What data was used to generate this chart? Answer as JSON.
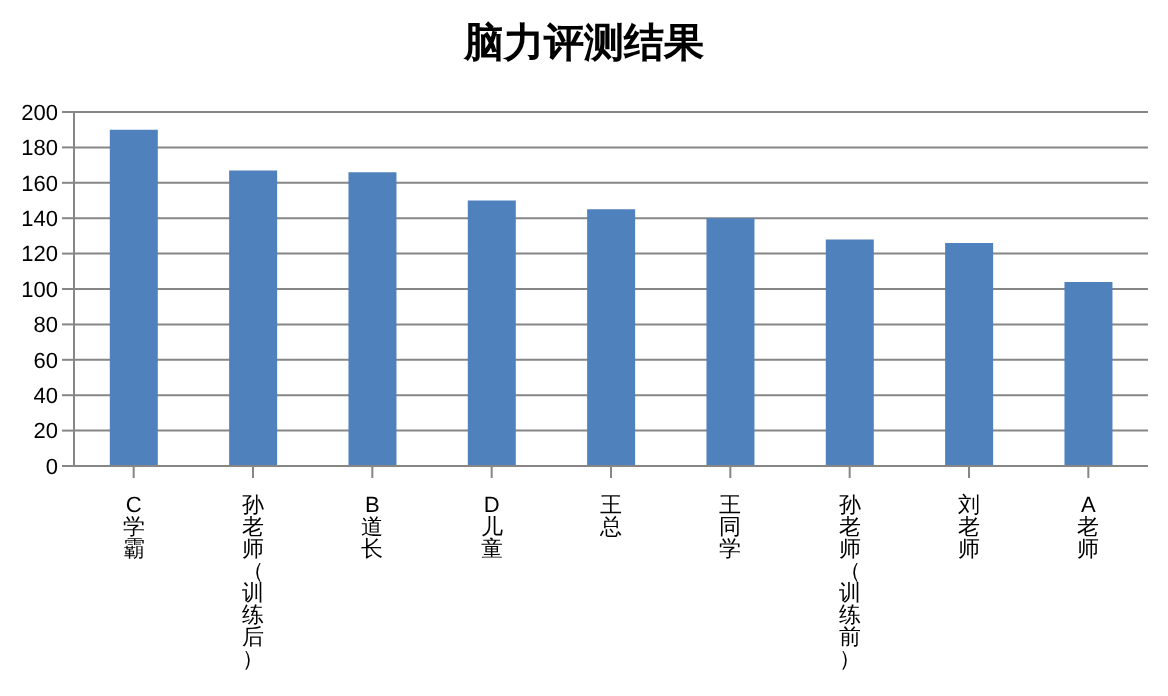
{
  "chart_data": {
    "type": "bar",
    "title": "脑力评测结果",
    "categories": [
      "C学霸",
      "孙老师（训练后）",
      "B道长",
      "D儿童",
      "王总",
      "王同学",
      "孙老师（训练前）",
      "刘老师",
      "A老师"
    ],
    "values": [
      190,
      167,
      166,
      150,
      145,
      140,
      128,
      126,
      104
    ],
    "color": "#4f81bd",
    "ylim": [
      0,
      200
    ],
    "yticks": [
      0,
      20,
      40,
      60,
      80,
      100,
      120,
      140,
      160,
      180,
      200
    ],
    "grid": "y"
  }
}
